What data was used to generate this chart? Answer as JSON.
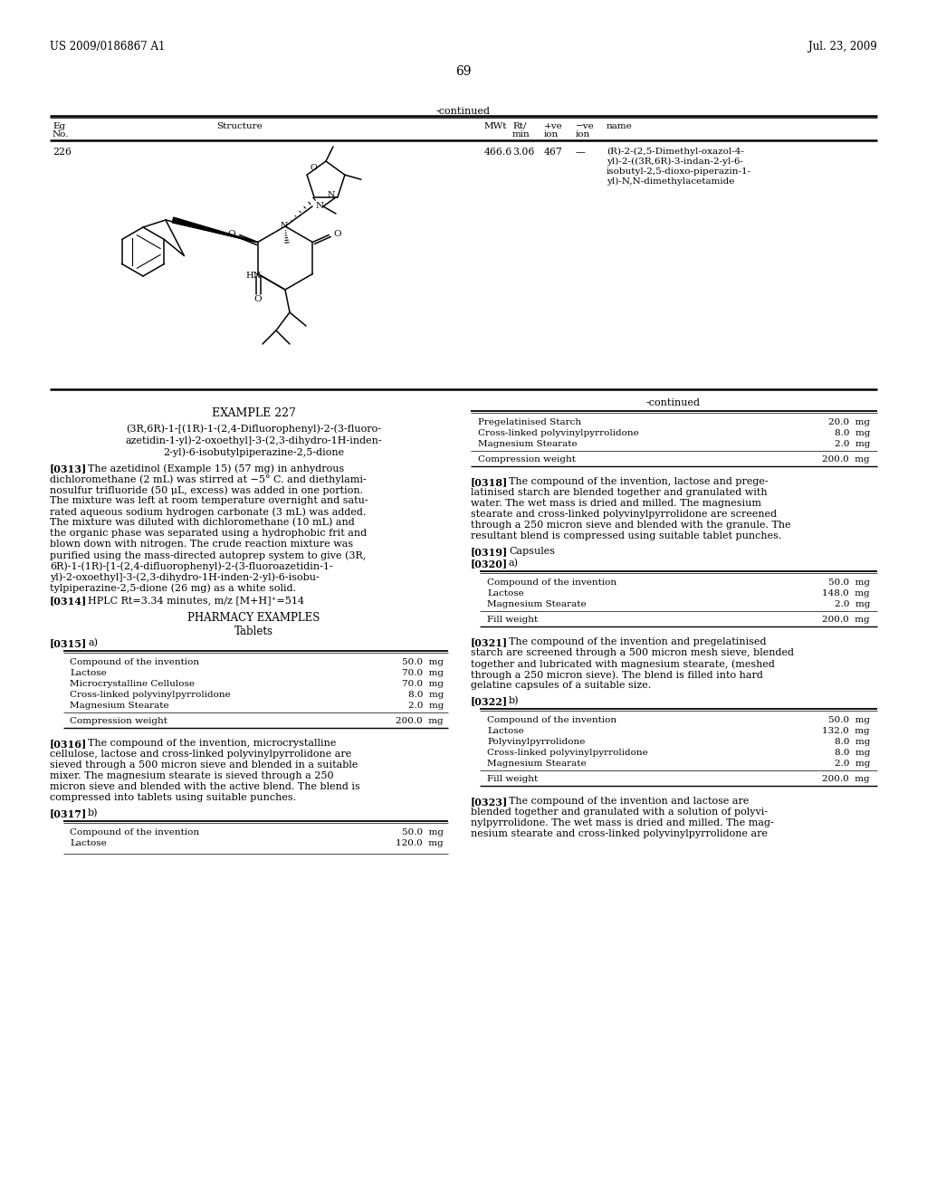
{
  "bg_color": "#ffffff",
  "header_left": "US 2009/0186867 A1",
  "header_right": "Jul. 23, 2009",
  "page_number": "69",
  "continued_label": "-continued",
  "table_row": {
    "eg_no": "226",
    "mwt": "466.6",
    "rt": "3.06",
    "pos_ion": "467",
    "neg_ion": "—",
    "name_lines": [
      "(R)-2-(2,5-Dimethyl-oxazol-4-",
      "yl)-2-((3R,6R)-3-indan-2-yl-6-",
      "isobutyl-2,5-dioxo-piperazin-1-",
      "yl)-N,N-dimethylacetamide"
    ]
  },
  "example_title": "EXAMPLE 227",
  "compound_name_lines": [
    "(3R,6R)-1-[(1R)-1-(2,4-Difluorophenyl)-2-(3-fluoro-",
    "azetidin-1-yl)-2-oxoethyl]-3-(2,3-dihydro-1H-inden-",
    "2-yl)-6-isobutylpiperazine-2,5-dione"
  ],
  "para_313_lines": [
    "The azetidinol (Example 15) (57 mg) in anhydrous",
    "dichloromethane (2 mL) was stirred at −5° C. and diethylami-",
    "nosulfur trifluoride (50 μL, excess) was added in one portion.",
    "The mixture was left at room temperature overnight and satu-",
    "rated aqueous sodium hydrogen carbonate (3 mL) was added.",
    "The mixture was diluted with dichloromethane (10 mL) and",
    "the organic phase was separated using a hydrophobic frit and",
    "blown down with nitrogen. The crude reaction mixture was",
    "purified using the mass-directed autoprep system to give (3R,",
    "6R)-1-(1R)-[1-(2,4-difluorophenyl)-2-(3-fluoroazetidin-1-",
    "yl)-2-oxoethyl]-3-(2,3-dihydro-1H-inden-2-yl)-6-isobu-",
    "tylpiperazine-2,5-dione (26 mg) as a white solid."
  ],
  "para_314_text": "HPLC Rt=3.34 minutes, m/z [M+H]⁺=514",
  "pharmacy_title": "PHARMACY EXAMPLES",
  "tablets_title": "Tablets",
  "table_315_rows": [
    [
      "Compound of the invention",
      "50.0  mg"
    ],
    [
      "Lactose",
      "70.0  mg"
    ],
    [
      "Microcrystalline Cellulose",
      "70.0  mg"
    ],
    [
      "Cross-linked polyvinylpyrrolidone",
      "8.0  mg"
    ],
    [
      "Magnesium Stearate",
      "2.0  mg"
    ]
  ],
  "table_315_total": [
    "Compression weight",
    "200.0  mg"
  ],
  "para_316_lines": [
    "The compound of the invention, microcrystalline",
    "cellulose, lactose and cross-linked polyvinylpyrrolidone are",
    "sieved through a 500 micron sieve and blended in a suitable",
    "mixer. The magnesium stearate is sieved through a 250",
    "micron sieve and blended with the active blend. The blend is",
    "compressed into tablets using suitable punches."
  ],
  "table_317_rows": [
    [
      "Compound of the invention",
      "50.0  mg"
    ],
    [
      "Lactose",
      "120.0  mg"
    ]
  ],
  "table_rightb_rows": [
    [
      "Pregelatinised Starch",
      "20.0  mg"
    ],
    [
      "Cross-linked polyvinylpyrrolidone",
      "8.0  mg"
    ],
    [
      "Magnesium Stearate",
      "2.0  mg"
    ]
  ],
  "table_rightb_total": [
    "Compression weight",
    "200.0  mg"
  ],
  "para_318_lines": [
    "The compound of the invention, lactose and prege-",
    "latinised starch are blended together and granulated with",
    "water. The wet mass is dried and milled. The magnesium",
    "stearate and cross-linked polyvinylpyrrolidone are screened",
    "through a 250 micron sieve and blended with the granule. The",
    "resultant blend is compressed using suitable tablet punches."
  ],
  "table_320_rows": [
    [
      "Compound of the invention",
      "50.0  mg"
    ],
    [
      "Lactose",
      "148.0  mg"
    ],
    [
      "Magnesium Stearate",
      "2.0  mg"
    ]
  ],
  "table_320_total": [
    "Fill weight",
    "200.0  mg"
  ],
  "para_321_lines": [
    "The compound of the invention and pregelatinised",
    "starch are screened through a 500 micron mesh sieve, blended",
    "together and lubricated with magnesium stearate, (meshed",
    "through a 250 micron sieve). The blend is filled into hard",
    "gelatine capsules of a suitable size."
  ],
  "table_322_rows": [
    [
      "Compound of the invention",
      "50.0  mg"
    ],
    [
      "Lactose",
      "132.0  mg"
    ],
    [
      "Polyvinylpyrrolidone",
      "8.0  mg"
    ],
    [
      "Cross-linked polyvinylpyrrolidone",
      "8.0  mg"
    ],
    [
      "Magnesium Stearate",
      "2.0  mg"
    ]
  ],
  "table_322_total": [
    "Fill weight",
    "200.0  mg"
  ],
  "para_323_lines": [
    "The compound of the invention and lactose are",
    "blended together and granulated with a solution of polyvi-",
    "nylpyrrolidone. The wet mass is dried and milled. The mag-",
    "nesium stearate and cross-linked polyvinylpyrrolidone are"
  ]
}
